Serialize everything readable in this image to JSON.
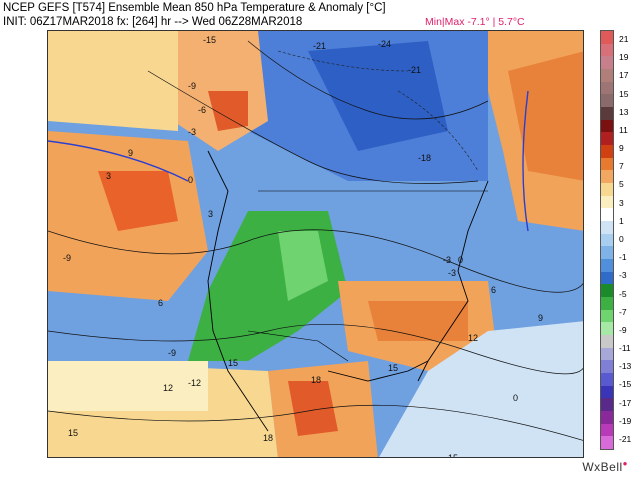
{
  "header": {
    "title": "NCEP GEFS [T574] Ensemble Mean 850 hPa Temperature & Anomaly [°C]",
    "init": "INIT: 06Z17MAR2018 fx: [264] hr --> Wed 06Z28MAR2018",
    "minmax": "Min|Max -7.1° | 5.7°C"
  },
  "colorbar": {
    "labels": [
      "21",
      "19",
      "17",
      "15",
      "13",
      "11",
      "9",
      "7",
      "5",
      "3",
      "1",
      "0",
      "-1",
      "-3",
      "-5",
      "-7",
      "-9",
      "-11",
      "-13",
      "-15",
      "-17",
      "-19",
      "-21"
    ],
    "colors": [
      "#e05a5a",
      "#d8707a",
      "#c77f8c",
      "#b07f7a",
      "#9e7575",
      "#8a6a6a",
      "#5a3a3a",
      "#7a1010",
      "#b02020",
      "#d04010",
      "#e87a30",
      "#f2a860",
      "#f8d890",
      "#fbeec0",
      "#ffffff",
      "#cfe3f5",
      "#a9cff0",
      "#7fb3e8",
      "#4f8fdc",
      "#2f6cc9",
      "#1a8a2a",
      "#3cb043",
      "#6fd36f",
      "#a6e8a6",
      "#c9c9c9",
      "#a8a8d8",
      "#7f7fd6",
      "#5a5ad0",
      "#3a34b8",
      "#5a2a8a",
      "#8a2a9a",
      "#b83ab8",
      "#d96ad9"
    ]
  },
  "map": {
    "contour_labels": [
      "-15",
      "-21",
      "-24",
      "-21",
      "-18",
      "-9",
      "-6",
      "-3",
      "3",
      "0",
      "-3",
      "-9",
      "9",
      "6",
      "3",
      "0",
      "-3",
      "6",
      "9",
      "12",
      "15",
      "18",
      "15",
      "12",
      "15",
      "18",
      "-9",
      "-12",
      "15",
      "0"
    ]
  },
  "brand": {
    "name": "WxBell"
  }
}
